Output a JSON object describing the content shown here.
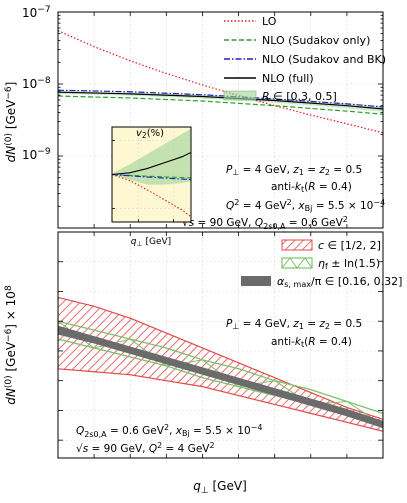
{
  "chart_data": [
    {
      "type": "line",
      "panel": "top",
      "yscale": "log",
      "ylabel": "dN^(0) [GeV^-6]",
      "xlim": [
        0.25,
        2.5
      ],
      "ylim": [
        1e-10,
        1e-07
      ],
      "ytick_labels": [
        "10^-9",
        "10^-8",
        "10^-7"
      ],
      "series": [
        {
          "name": "LO",
          "color": "#e41a1c",
          "dash": "dotted",
          "x": [
            0.25,
            0.5,
            0.75,
            1.0,
            1.25,
            1.5,
            1.75,
            2.0,
            2.25,
            2.5
          ],
          "y": [
            5.5e-08,
            3.3e-08,
            2.1e-08,
            1.4e-08,
            9.7e-09,
            6.9e-09,
            5e-09,
            3.7e-09,
            2.8e-09,
            2.1e-09
          ]
        },
        {
          "name": "NLO (Sudakov only)",
          "color": "#2ca02c",
          "dash": "dashed",
          "x": [
            0.25,
            0.75,
            1.25,
            1.75,
            2.25,
            2.5
          ],
          "y": [
            6.8e-09,
            6.4e-09,
            5.8e-09,
            5e-09,
            4.2e-09,
            3.8e-09
          ]
        },
        {
          "name": "NLO (Sudakov and BK)",
          "color": "#1f1fbf",
          "dash": "dashdot",
          "x": [
            0.25,
            0.75,
            1.25,
            1.75,
            2.25,
            2.5
          ],
          "y": [
            8.2e-09,
            7.8e-09,
            7.1e-09,
            6.2e-09,
            5.3e-09,
            4.8e-09
          ]
        },
        {
          "name": "NLO (full)",
          "color": "#000000",
          "dash": "solid",
          "x": [
            0.25,
            0.75,
            1.25,
            1.75,
            2.25,
            2.5
          ],
          "y": [
            7.7e-09,
            7.3e-09,
            6.7e-09,
            5.9e-09,
            5e-09,
            4.5e-09
          ]
        }
      ],
      "band": {
        "name": "R ∈ [0.3, 0.5]",
        "color": "#9fd39a",
        "x": [
          0.25,
          0.75,
          1.25,
          1.75,
          2.25,
          2.5
        ],
        "lower": [
          7.3e-09,
          6.9e-09,
          6.3e-09,
          5.5e-09,
          4.6e-09,
          4.1e-09
        ],
        "upper": [
          8.1e-09,
          7.7e-09,
          7.1e-09,
          6.3e-09,
          5.4e-09,
          4.9e-09
        ]
      },
      "legend": [
        "LO",
        "NLO (Sudakov only)",
        "NLO (Sudakov and BK)",
        "NLO (full)",
        "R ∈ [0.3, 0.5]"
      ],
      "legend_position": "top-right",
      "annotations": [
        "P⊥ = 4 GeV, z1 = z2 = 0.5",
        "anti-kt(R = 0.4)",
        "Q² = 4 GeV², xBj = 5.5 × 10⁻⁴",
        "√s = 90 GeV, Q²s0,A = 0.6 GeV²"
      ],
      "inset": {
        "title": "v2(%)",
        "xlabel": "q⊥ [GeV]",
        "xlim": [
          0.25,
          2.5
        ],
        "ylim": [
          -2.8,
          2.8
        ],
        "xticks": [
          "1",
          "2"
        ],
        "yticks": [
          "2",
          "0",
          "-2"
        ],
        "series": [
          {
            "name": "NLO (full)",
            "color": "#000000",
            "x": [
              0.25,
              0.75,
              1.25,
              1.75,
              2.25,
              2.5
            ],
            "y": [
              0.0,
              0.1,
              0.35,
              0.7,
              1.05,
              1.3
            ]
          },
          {
            "name": "LO",
            "color": "#e41a1c",
            "x": [
              0.25,
              0.75,
              1.25,
              1.75,
              2.25,
              2.5
            ],
            "y": [
              0.0,
              -0.35,
              -0.9,
              -1.5,
              -2.1,
              -2.5
            ]
          },
          {
            "name": "NLO (Sudakov only)",
            "color": "#2ca02c",
            "x": [
              0.25,
              1.25,
              2.5
            ],
            "y": [
              0.0,
              -0.1,
              -0.2
            ]
          },
          {
            "name": "NLO (Sudakov and BK)",
            "color": "#1f1fbf",
            "x": [
              0.25,
              1.25,
              2.5
            ],
            "y": [
              0.0,
              -0.15,
              -0.3
            ]
          }
        ],
        "band": {
          "x": [
            0.25,
            0.75,
            1.25,
            1.75,
            2.25,
            2.5
          ],
          "lower": [
            0.0,
            -0.3,
            -0.6,
            -0.6,
            -0.5,
            -0.4
          ],
          "upper": [
            0.05,
            0.6,
            1.2,
            1.8,
            2.4,
            2.7
          ]
        }
      }
    },
    {
      "type": "line",
      "panel": "bottom",
      "ylabel": "dN^(0) [GeV^-6] × 10^8",
      "xlabel": "q⊥ [GeV]",
      "xlim": [
        0.25,
        2.5
      ],
      "ylim": [
        0.34,
        1.1
      ],
      "xticks": [
        "0.25",
        "0.50",
        "0.75",
        "1.00",
        "1.25",
        "1.50",
        "1.75",
        "2.00",
        "2.25",
        "2.50"
      ],
      "yticks": [
        "0.4",
        "0.5",
        "0.6",
        "0.7",
        "0.8",
        "0.9",
        "1.0",
        "1.1"
      ],
      "bands": [
        {
          "name": "c ∈ [1/2, 2]",
          "color": "#e34a4a",
          "hatch": true,
          "x": [
            0.25,
            0.5,
            0.75,
            1.0,
            1.25,
            1.5,
            1.75,
            2.0,
            2.25,
            2.5
          ],
          "lower": [
            0.64,
            0.63,
            0.62,
            0.6,
            0.58,
            0.55,
            0.52,
            0.49,
            0.46,
            0.43
          ],
          "upper": [
            0.88,
            0.85,
            0.81,
            0.76,
            0.71,
            0.66,
            0.61,
            0.56,
            0.51,
            0.47
          ]
        },
        {
          "name": "ηf ± ln(1.5)",
          "color": "#7cc26b",
          "x": [
            0.25,
            0.5,
            0.75,
            1.0,
            1.25,
            1.5,
            1.75,
            2.0,
            2.25,
            2.5
          ],
          "lower": [
            0.74,
            0.71,
            0.68,
            0.65,
            0.61,
            0.58,
            0.55,
            0.52,
            0.49,
            0.45
          ],
          "upper": [
            0.8,
            0.77,
            0.74,
            0.71,
            0.67,
            0.64,
            0.6,
            0.57,
            0.53,
            0.49
          ]
        },
        {
          "name": "αs,max/π ∈ [0.16, 0.32]",
          "color": "#6b6b6b",
          "x": [
            0.25,
            0.5,
            0.75,
            1.0,
            1.25,
            1.5,
            1.75,
            2.0,
            2.25,
            2.5
          ],
          "lower": [
            0.755,
            0.725,
            0.69,
            0.655,
            0.62,
            0.585,
            0.55,
            0.515,
            0.48,
            0.44
          ],
          "upper": [
            0.785,
            0.75,
            0.715,
            0.68,
            0.645,
            0.61,
            0.575,
            0.54,
            0.505,
            0.465
          ]
        }
      ],
      "legend": [
        "c ∈ [1/2, 2]",
        "ηf ± ln(1.5)",
        "αs,max/π ∈ [0.16, 0.32]"
      ],
      "legend_position": "top-right",
      "annotations": [
        "P⊥ = 4 GeV, z1 = z2 = 0.5",
        "anti-kt(R = 0.4)",
        "Q²s0,A = 0.6 GeV², xBj = 5.5 × 10⁻⁴",
        "√s = 90 GeV, Q² = 4 GeV²"
      ]
    }
  ]
}
